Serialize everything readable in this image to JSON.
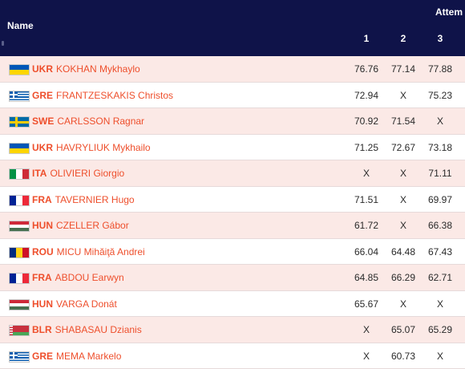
{
  "header": {
    "name_label": "Name",
    "attempts_label": "Attem",
    "attempt_numbers": [
      "1",
      "2",
      "3"
    ]
  },
  "rows": [
    {
      "noc": "UKR",
      "name": "KOKHAN Mykhaylo",
      "flag_icon": "ukraine-flag-icon",
      "marks": [
        "76.76",
        "77.14",
        "77.88"
      ]
    },
    {
      "noc": "GRE",
      "name": "FRANTZESKAKIS Christos",
      "flag_icon": "greece-flag-icon",
      "marks": [
        "72.94",
        "X",
        "75.23"
      ]
    },
    {
      "noc": "SWE",
      "name": "CARLSSON Ragnar",
      "flag_icon": "sweden-flag-icon",
      "marks": [
        "70.92",
        "71.54",
        "X"
      ]
    },
    {
      "noc": "UKR",
      "name": "HAVRYLIUK Mykhailo",
      "flag_icon": "ukraine-flag-icon",
      "marks": [
        "71.25",
        "72.67",
        "73.18"
      ]
    },
    {
      "noc": "ITA",
      "name": "OLIVIERI Giorgio",
      "flag_icon": "italy-flag-icon",
      "marks": [
        "X",
        "X",
        "71.11"
      ]
    },
    {
      "noc": "FRA",
      "name": "TAVERNIER Hugo",
      "flag_icon": "france-flag-icon",
      "marks": [
        "71.51",
        "X",
        "69.97"
      ]
    },
    {
      "noc": "HUN",
      "name": "CZELLER Gábor",
      "flag_icon": "hungary-flag-icon",
      "marks": [
        "61.72",
        "X",
        "66.38"
      ]
    },
    {
      "noc": "ROU",
      "name": "MICU Mihăiţă Andrei",
      "flag_icon": "romania-flag-icon",
      "marks": [
        "66.04",
        "64.48",
        "67.43"
      ]
    },
    {
      "noc": "FRA",
      "name": "ABDOU Earwyn",
      "flag_icon": "france-flag-icon",
      "marks": [
        "64.85",
        "66.29",
        "62.71"
      ]
    },
    {
      "noc": "HUN",
      "name": "VARGA Donát",
      "flag_icon": "hungary-flag-icon",
      "marks": [
        "65.67",
        "X",
        "X"
      ]
    },
    {
      "noc": "BLR",
      "name": "SHABASAU Dzianis",
      "flag_icon": "belarus-flag-icon",
      "marks": [
        "X",
        "65.07",
        "65.29"
      ]
    },
    {
      "noc": "GRE",
      "name": "MEMA Markelo",
      "flag_icon": "greece-flag-icon",
      "marks": [
        "X",
        "60.73",
        "X"
      ]
    }
  ],
  "colors": {
    "header_bg": "#0f1349",
    "accent_text": "#ee4f2c",
    "row_alt_bg": "#fbe9e6"
  }
}
